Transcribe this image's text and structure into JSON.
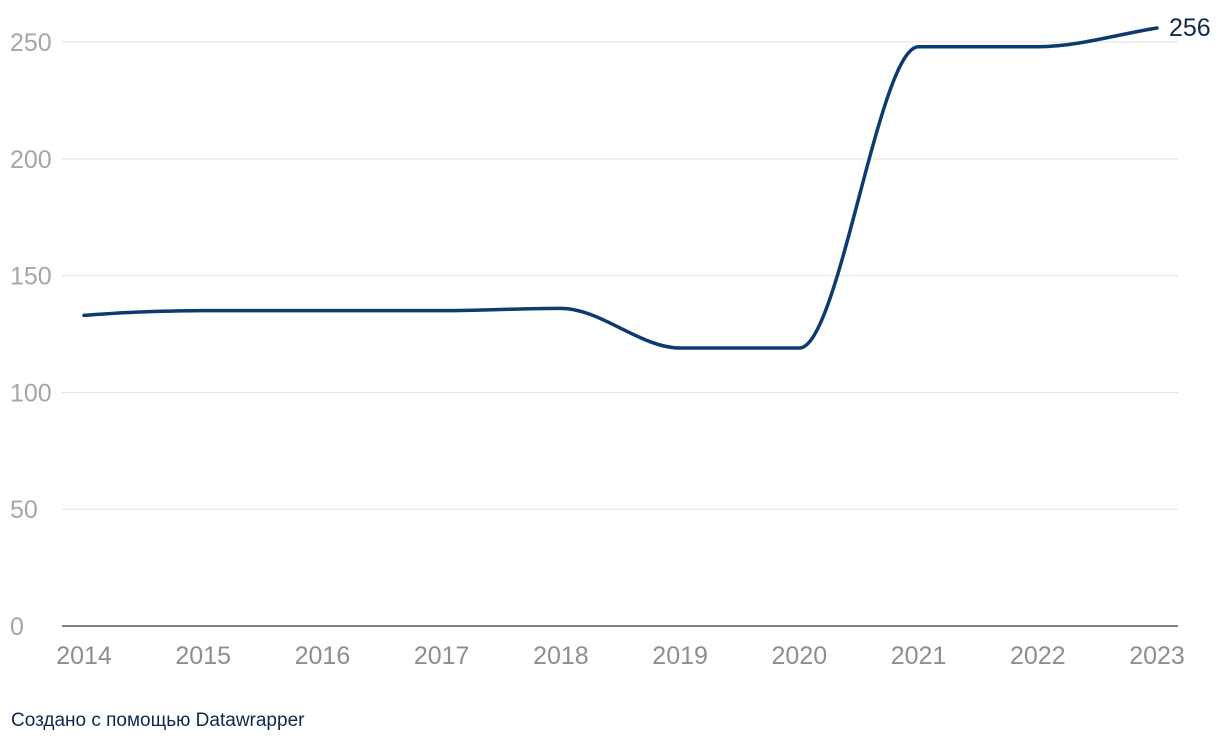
{
  "chart_data": {
    "type": "line",
    "categories": [
      "2014",
      "2015",
      "2016",
      "2017",
      "2018",
      "2019",
      "2020",
      "2021",
      "2022",
      "2023"
    ],
    "x": [
      2014,
      2014.5,
      2015,
      2016,
      2017,
      2018,
      2019,
      2020,
      2021,
      2022,
      2023
    ],
    "series": [
      {
        "values": [
          133,
          134.5,
          135,
          135,
          135,
          136,
          119,
          119,
          248,
          248,
          256
        ],
        "color": "#0d3b70"
      }
    ],
    "y_ticks": [
      0,
      50,
      100,
      150,
      200,
      250
    ],
    "ylim": [
      0,
      262
    ],
    "xlim": [
      2014,
      2023
    ],
    "grid": true,
    "end_label": "256"
  },
  "footer": {
    "credit": "Создано с помощью Datawrapper"
  }
}
